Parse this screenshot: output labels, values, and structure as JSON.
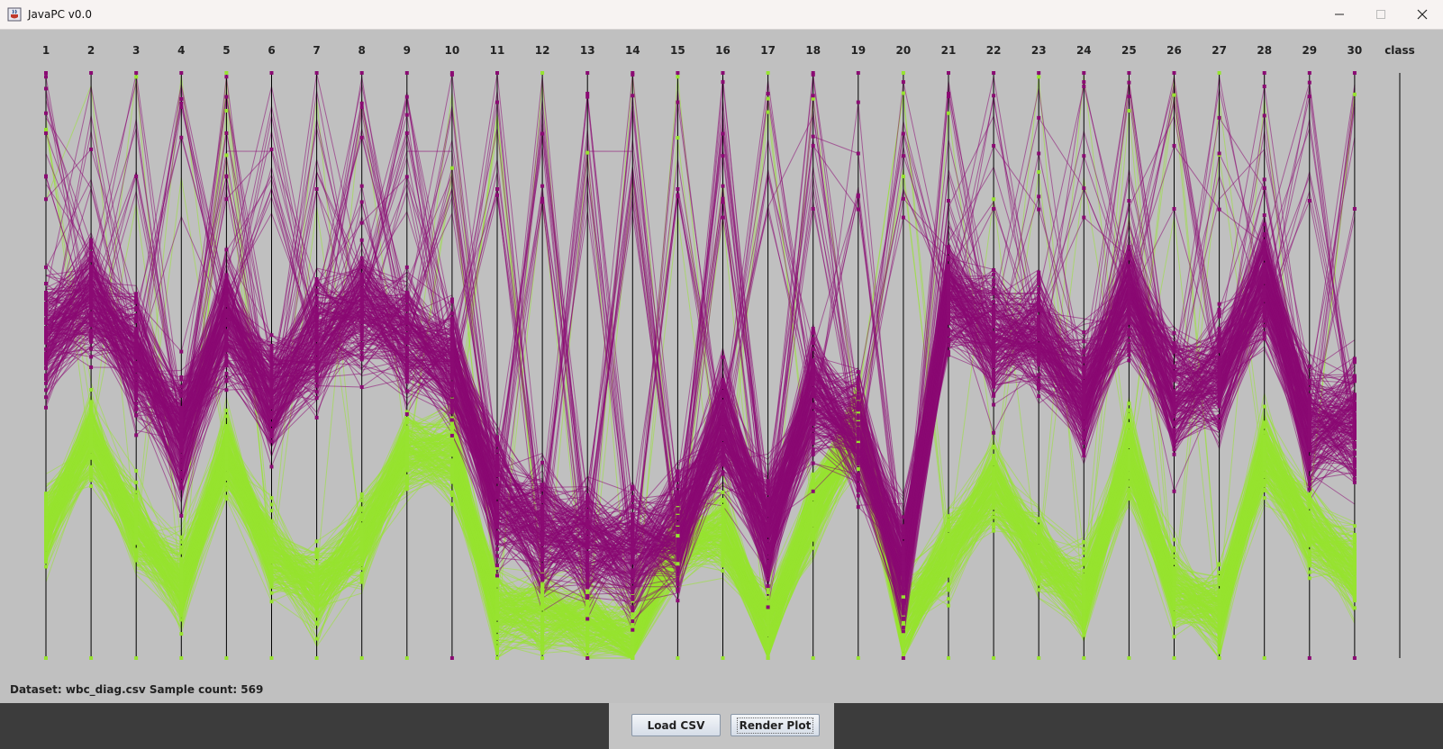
{
  "window": {
    "title": "JavaPC v0.0",
    "controls": [
      "minimize",
      "maximize",
      "close"
    ]
  },
  "plot": {
    "axis_labels": [
      "1",
      "2",
      "3",
      "4",
      "5",
      "6",
      "7",
      "8",
      "9",
      "10",
      "11",
      "12",
      "13",
      "14",
      "15",
      "16",
      "17",
      "18",
      "19",
      "20",
      "21",
      "22",
      "23",
      "24",
      "25",
      "26",
      "27",
      "28",
      "29",
      "30",
      "class"
    ],
    "colors": {
      "class_malignant": "#8b0a73",
      "class_benign": "#97e330",
      "axis": "#000000",
      "background": "#c0c0c0"
    }
  },
  "chart_data": {
    "type": "parallel-coordinates",
    "axes": [
      "1",
      "2",
      "3",
      "4",
      "5",
      "6",
      "7",
      "8",
      "9",
      "10",
      "11",
      "12",
      "13",
      "14",
      "15",
      "16",
      "17",
      "18",
      "19",
      "20",
      "21",
      "22",
      "23",
      "24",
      "25",
      "26",
      "27",
      "28",
      "29",
      "30",
      "class"
    ],
    "series": [
      {
        "color": "#8b0a73",
        "profile": [
          0.55,
          0.62,
          0.52,
          0.38,
          0.58,
          0.45,
          0.55,
          0.6,
          0.55,
          0.5,
          0.28,
          0.22,
          0.2,
          0.18,
          0.22,
          0.4,
          0.22,
          0.45,
          0.38,
          0.15,
          0.62,
          0.55,
          0.55,
          0.45,
          0.62,
          0.45,
          0.48,
          0.65,
          0.4,
          0.4
        ]
      },
      {
        "color": "#97e330",
        "profile": [
          0.22,
          0.38,
          0.22,
          0.12,
          0.35,
          0.18,
          0.12,
          0.2,
          0.35,
          0.35,
          0.08,
          0.08,
          0.06,
          0.03,
          0.2,
          0.22,
          0.05,
          0.25,
          0.4,
          0.06,
          0.18,
          0.3,
          0.18,
          0.1,
          0.35,
          0.12,
          0.08,
          0.35,
          0.22,
          0.15
        ]
      }
    ]
  },
  "status": {
    "dataset_text": "Dataset: wbc_diag.csv Sample count: 569"
  },
  "buttons": {
    "load_label": "Load CSV",
    "render_label": "Render Plot"
  }
}
